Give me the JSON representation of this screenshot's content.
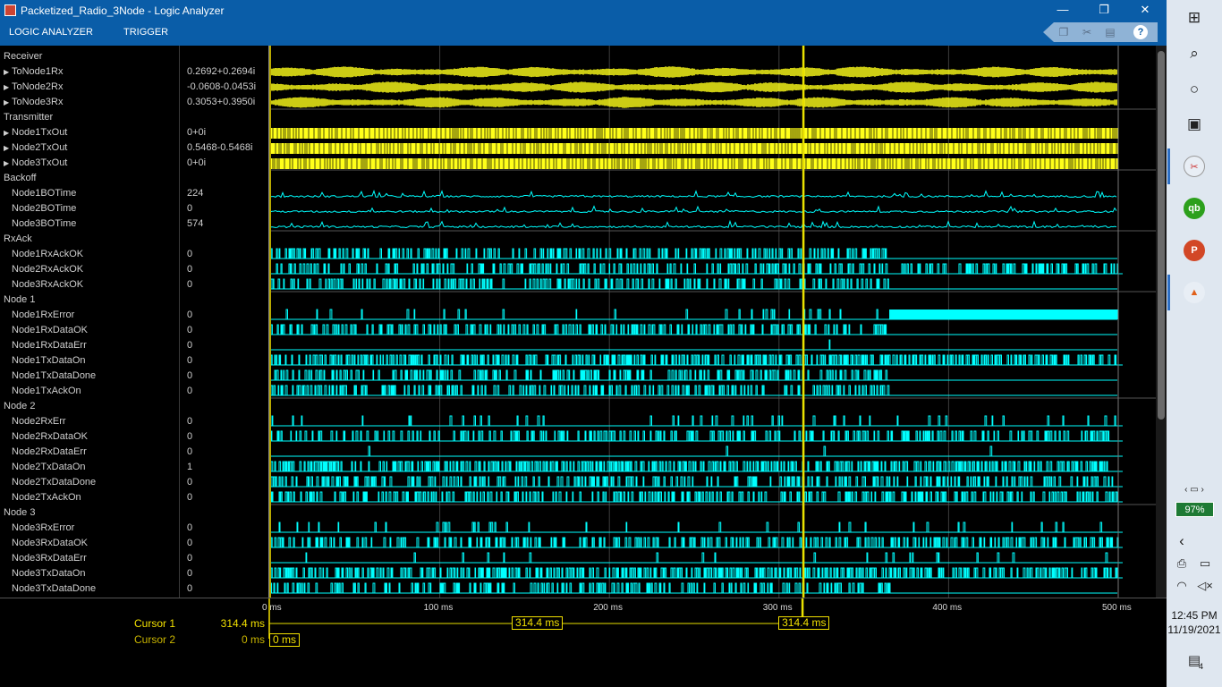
{
  "window": {
    "title": "Packetized_Radio_3Node - Logic Analyzer",
    "minimize": "—",
    "restore": "❐",
    "close": "✕"
  },
  "toolstrip": {
    "tabs": [
      "LOGIC ANALYZER",
      "TRIGGER"
    ],
    "help": "?"
  },
  "signals": [
    {
      "name": "Receiver",
      "kind": "group"
    },
    {
      "name": "ToNode1Rx",
      "kind": "expandable",
      "value": "0.2692+0.2694i",
      "style": "analog"
    },
    {
      "name": "ToNode2Rx",
      "kind": "expandable",
      "value": "-0.0608-0.0453i",
      "style": "analog"
    },
    {
      "name": "ToNode3Rx",
      "kind": "expandable",
      "value": "0.3053+0.3950i",
      "style": "analog"
    },
    {
      "name": "Transmitter",
      "kind": "group"
    },
    {
      "name": "Node1TxOut",
      "kind": "expandable",
      "value": "0+0i",
      "style": "dense"
    },
    {
      "name": "Node2TxOut",
      "kind": "expandable",
      "value": "0.5468-0.5468i",
      "style": "dense"
    },
    {
      "name": "Node3TxOut",
      "kind": "expandable",
      "value": "0+0i",
      "style": "dense"
    },
    {
      "name": "Backoff",
      "kind": "group"
    },
    {
      "name": "Node1BOTime",
      "kind": "signal",
      "value": "224",
      "style": "noise"
    },
    {
      "name": "Node2BOTime",
      "kind": "signal",
      "value": "0",
      "style": "noise"
    },
    {
      "name": "Node3BOTime",
      "kind": "signal",
      "value": "574",
      "style": "noise"
    },
    {
      "name": "RxAck",
      "kind": "group"
    },
    {
      "name": "Node1RxAckOK",
      "kind": "signal",
      "value": "0",
      "style": "pulses",
      "density": 0.55,
      "end": 0.73
    },
    {
      "name": "Node2RxAckOK",
      "kind": "signal",
      "value": "0",
      "style": "pulses",
      "density": 0.5,
      "end": 1.0
    },
    {
      "name": "Node3RxAckOK",
      "kind": "signal",
      "value": "0",
      "style": "pulses",
      "density": 0.5,
      "end": 0.73
    },
    {
      "name": "Node 1",
      "kind": "group"
    },
    {
      "name": "Node1RxError",
      "kind": "signal",
      "value": "0",
      "style": "pulses",
      "density": 0.1,
      "end": 0.73,
      "block": [
        0.73,
        1.0
      ]
    },
    {
      "name": "Node1RxDataOK",
      "kind": "signal",
      "value": "0",
      "style": "pulses",
      "density": 0.55,
      "end": 0.73
    },
    {
      "name": "Node1RxDataErr",
      "kind": "signal",
      "value": "0",
      "style": "pulses",
      "density": 0.01,
      "end": 0.73
    },
    {
      "name": "Node1TxDataOn",
      "kind": "signal",
      "value": "0",
      "style": "pulses",
      "density": 0.75,
      "end": 1.0
    },
    {
      "name": "Node1TxDataDone",
      "kind": "signal",
      "value": "0",
      "style": "pulses",
      "density": 0.55,
      "end": 0.73
    },
    {
      "name": "Node1TxAckOn",
      "kind": "signal",
      "value": "0",
      "style": "pulses",
      "density": 0.55,
      "end": 0.73
    },
    {
      "name": "Node 2",
      "kind": "group"
    },
    {
      "name": "Node2RxErr",
      "kind": "signal",
      "value": "0",
      "style": "pulses",
      "density": 0.12,
      "end": 1.0
    },
    {
      "name": "Node2RxDataOK",
      "kind": "signal",
      "value": "0",
      "style": "pulses",
      "density": 0.55,
      "end": 1.0
    },
    {
      "name": "Node2RxDataErr",
      "kind": "signal",
      "value": "0",
      "style": "pulses",
      "density": 0.005,
      "end": 1.0
    },
    {
      "name": "Node2TxDataOn",
      "kind": "signal",
      "value": "1",
      "style": "pulses",
      "density": 0.75,
      "end": 1.0
    },
    {
      "name": "Node2TxDataDone",
      "kind": "signal",
      "value": "0",
      "style": "pulses",
      "density": 0.5,
      "end": 1.0
    },
    {
      "name": "Node2TxAckOn",
      "kind": "signal",
      "value": "0",
      "style": "pulses",
      "density": 0.55,
      "end": 1.0
    },
    {
      "name": "Node 3",
      "kind": "group"
    },
    {
      "name": "Node3RxError",
      "kind": "signal",
      "value": "0",
      "style": "pulses",
      "density": 0.12,
      "end": 1.0
    },
    {
      "name": "Node3RxDataOK",
      "kind": "signal",
      "value": "0",
      "style": "pulses",
      "density": 0.55,
      "end": 1.0
    },
    {
      "name": "Node3RxDataErr",
      "kind": "signal",
      "value": "0",
      "style": "pulses",
      "density": 0.03,
      "end": 1.0
    },
    {
      "name": "Node3TxDataOn",
      "kind": "signal",
      "value": "0",
      "style": "pulses",
      "density": 0.75,
      "end": 1.0
    },
    {
      "name": "Node3TxDataDone",
      "kind": "signal",
      "value": "0",
      "style": "pulses",
      "density": 0.5,
      "end": 0.73
    }
  ],
  "time_axis": {
    "range_ms": [
      0,
      500
    ],
    "ticks": [
      {
        "ms": 0,
        "label": "0 ms"
      },
      {
        "ms": 100,
        "label": "100 ms"
      },
      {
        "ms": 200,
        "label": "200 ms"
      },
      {
        "ms": 300,
        "label": "300 ms"
      },
      {
        "ms": 400,
        "label": "400 ms"
      },
      {
        "ms": 500,
        "label": "500 ms"
      }
    ]
  },
  "cursors": [
    {
      "label": "Cursor 1",
      "value": "314.4 ms",
      "ms": 314.4,
      "delta_label": "314.4 ms"
    },
    {
      "label": "Cursor 2",
      "value": "0 ms",
      "ms": 0
    }
  ],
  "colors": {
    "yellow_signal": "#ffff1a",
    "cyan_signal": "#00ffff",
    "cursor1": "#e8e000",
    "cursor2": "#b8a800",
    "grid": "#3c3c3c"
  },
  "taskbar": {
    "zoom": "97%",
    "time": "12:45 PM",
    "date": "11/19/2021",
    "notifications": "4"
  }
}
